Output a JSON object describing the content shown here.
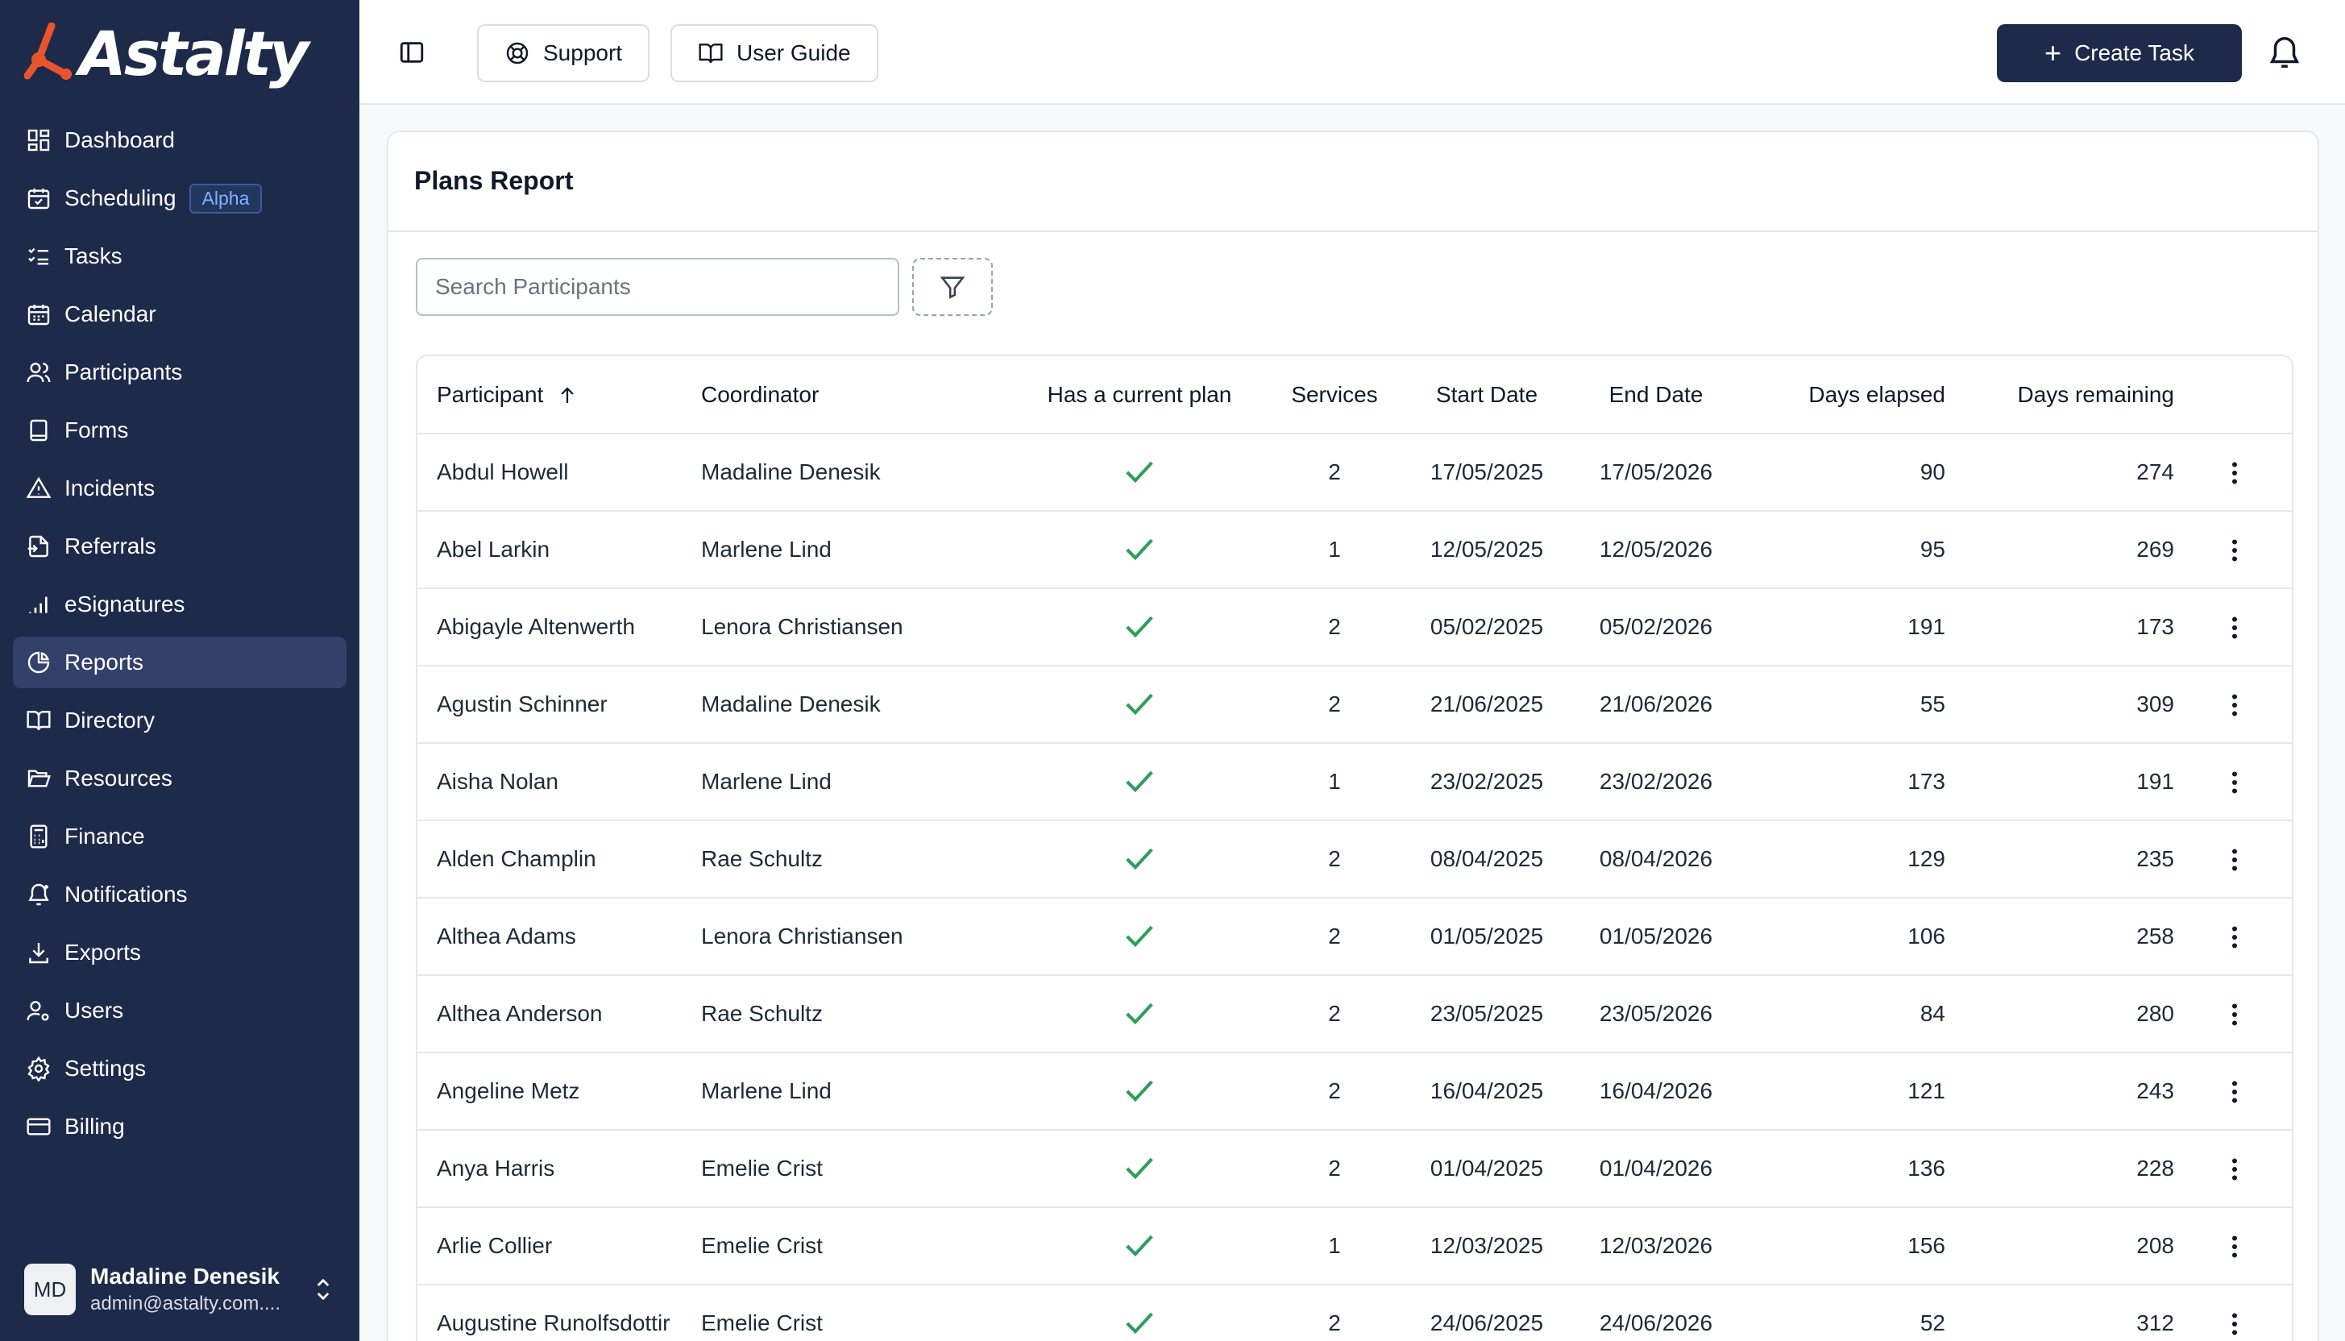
{
  "app": {
    "brand": "Astalty",
    "brand_color": "#e8552d",
    "sidebar_bg": "#1e2a4a"
  },
  "sidebar": {
    "items": [
      {
        "label": "Dashboard",
        "icon": "dashboard-icon"
      },
      {
        "label": "Scheduling",
        "icon": "calendar-check-icon",
        "badge": "Alpha"
      },
      {
        "label": "Tasks",
        "icon": "list-checks-icon"
      },
      {
        "label": "Calendar",
        "icon": "calendar-icon"
      },
      {
        "label": "Participants",
        "icon": "users-icon"
      },
      {
        "label": "Forms",
        "icon": "form-icon"
      },
      {
        "label": "Incidents",
        "icon": "warning-icon"
      },
      {
        "label": "Referrals",
        "icon": "file-import-icon"
      },
      {
        "label": "eSignatures",
        "icon": "signal-bars-icon"
      },
      {
        "label": "Reports",
        "icon": "pie-chart-icon",
        "active": true
      },
      {
        "label": "Directory",
        "icon": "book-open-icon"
      },
      {
        "label": "Resources",
        "icon": "folder-open-icon"
      },
      {
        "label": "Finance",
        "icon": "calculator-icon"
      },
      {
        "label": "Notifications",
        "icon": "bell-plus-icon"
      },
      {
        "label": "Exports",
        "icon": "download-icon"
      },
      {
        "label": "Users",
        "icon": "user-cog-icon"
      },
      {
        "label": "Settings",
        "icon": "gear-icon"
      },
      {
        "label": "Billing",
        "icon": "credit-card-icon"
      }
    ],
    "user": {
      "initials": "MD",
      "name": "Madaline Denesik",
      "email": "admin@astalty.com...."
    }
  },
  "header": {
    "support_label": "Support",
    "guide_label": "User Guide",
    "create_label": "Create Task"
  },
  "report": {
    "title": "Plans Report",
    "search_placeholder": "Search Participants",
    "columns": [
      "Participant",
      "Coordinator",
      "Has a current plan",
      "Services",
      "Start Date",
      "End Date",
      "Days elapsed",
      "Days remaining"
    ],
    "rows": [
      {
        "participant": "Abdul Howell",
        "coordinator": "Madaline Denesik",
        "has_plan": true,
        "services": "2",
        "start": "17/05/2025",
        "end": "17/05/2026",
        "elapsed": "90",
        "remaining": "274"
      },
      {
        "participant": "Abel Larkin",
        "coordinator": "Marlene Lind",
        "has_plan": true,
        "services": "1",
        "start": "12/05/2025",
        "end": "12/05/2026",
        "elapsed": "95",
        "remaining": "269"
      },
      {
        "participant": "Abigayle Altenwerth",
        "coordinator": "Lenora Christiansen",
        "has_plan": true,
        "services": "2",
        "start": "05/02/2025",
        "end": "05/02/2026",
        "elapsed": "191",
        "remaining": "173"
      },
      {
        "participant": "Agustin Schinner",
        "coordinator": "Madaline Denesik",
        "has_plan": true,
        "services": "2",
        "start": "21/06/2025",
        "end": "21/06/2026",
        "elapsed": "55",
        "remaining": "309"
      },
      {
        "participant": "Aisha Nolan",
        "coordinator": "Marlene Lind",
        "has_plan": true,
        "services": "1",
        "start": "23/02/2025",
        "end": "23/02/2026",
        "elapsed": "173",
        "remaining": "191"
      },
      {
        "participant": "Alden Champlin",
        "coordinator": "Rae Schultz",
        "has_plan": true,
        "services": "2",
        "start": "08/04/2025",
        "end": "08/04/2026",
        "elapsed": "129",
        "remaining": "235"
      },
      {
        "participant": "Althea Adams",
        "coordinator": "Lenora Christiansen",
        "has_plan": true,
        "services": "2",
        "start": "01/05/2025",
        "end": "01/05/2026",
        "elapsed": "106",
        "remaining": "258"
      },
      {
        "participant": "Althea Anderson",
        "coordinator": "Rae Schultz",
        "has_plan": true,
        "services": "2",
        "start": "23/05/2025",
        "end": "23/05/2026",
        "elapsed": "84",
        "remaining": "280"
      },
      {
        "participant": "Angeline Metz",
        "coordinator": "Marlene Lind",
        "has_plan": true,
        "services": "2",
        "start": "16/04/2025",
        "end": "16/04/2026",
        "elapsed": "121",
        "remaining": "243"
      },
      {
        "participant": "Anya Harris",
        "coordinator": "Emelie Crist",
        "has_plan": true,
        "services": "2",
        "start": "01/04/2025",
        "end": "01/04/2026",
        "elapsed": "136",
        "remaining": "228"
      },
      {
        "participant": "Arlie Collier",
        "coordinator": "Emelie Crist",
        "has_plan": true,
        "services": "1",
        "start": "12/03/2025",
        "end": "12/03/2026",
        "elapsed": "156",
        "remaining": "208"
      },
      {
        "participant": "Augustine Runolfsdottir",
        "coordinator": "Emelie Crist",
        "has_plan": true,
        "services": "2",
        "start": "24/06/2025",
        "end": "24/06/2026",
        "elapsed": "52",
        "remaining": "312"
      }
    ]
  }
}
